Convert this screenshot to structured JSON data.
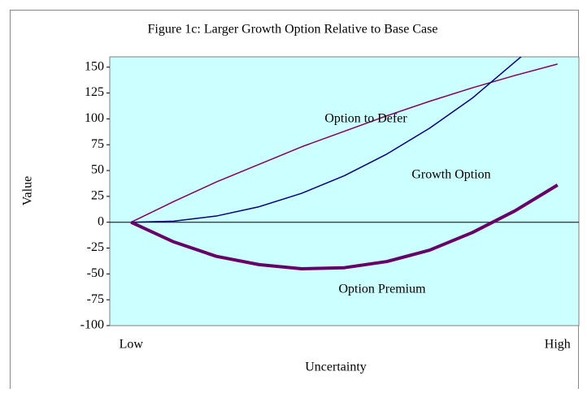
{
  "chart_data": {
    "type": "line",
    "title": "Figure 1c:  Larger Growth Option Relative to Base Case",
    "x_label": "Uncertainty",
    "y_label": "Value",
    "categories": [
      "Low",
      null,
      null,
      null,
      null,
      null,
      null,
      null,
      null,
      null,
      "High"
    ],
    "series": [
      {
        "name": "Option to Defer",
        "color": "#800060",
        "width": 1.5,
        "values": [
          0,
          20,
          39,
          56,
          73,
          88,
          103,
          117,
          130,
          142,
          153
        ]
      },
      {
        "name": "Growth Option",
        "color": "#000080",
        "width": 1.5,
        "values": [
          0,
          1,
          6,
          15,
          28,
          45,
          66,
          91,
          120,
          155,
          190
        ]
      },
      {
        "name": "Option Premium",
        "color": "#660066",
        "width": 4,
        "values": [
          0,
          -19,
          -33,
          -41,
          -45,
          -44,
          -38,
          -27,
          -10,
          11,
          36
        ]
      }
    ],
    "ylim": [
      -100,
      160
    ],
    "yticks": [
      -100,
      -75,
      -50,
      -25,
      0,
      25,
      50,
      75,
      100,
      125,
      150
    ],
    "plot_background": "#ccffff",
    "grid": false
  }
}
